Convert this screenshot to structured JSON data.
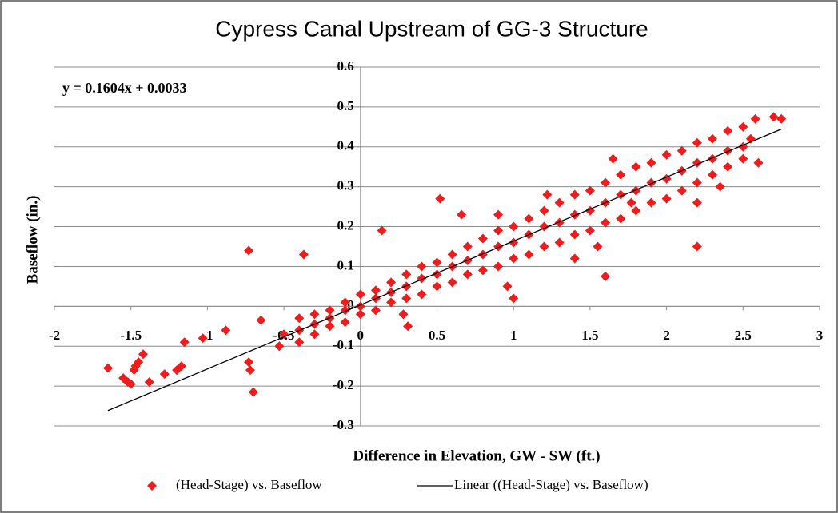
{
  "chart_data": {
    "type": "scatter",
    "title": "Cypress Canal Upstream of GG-3 Structure",
    "x_label": "Difference in Elevation, GW - SW (ft.)",
    "y_label": "Baseflow (in.)",
    "xlim": [
      -2,
      3
    ],
    "ylim": [
      -0.3,
      0.6
    ],
    "xticks": [
      -2,
      -1.5,
      -1,
      -0.5,
      0,
      0.5,
      1,
      1.5,
      2,
      2.5,
      3
    ],
    "yticks": [
      -0.3,
      -0.2,
      -0.1,
      0,
      0.1,
      0.2,
      0.3,
      0.4,
      0.5,
      0.6
    ],
    "grid": true,
    "legend": "bottom",
    "series": [
      {
        "name": "(Head-Stage) vs. Baseflow",
        "color": "#ee1c1c",
        "x": [
          -1.65,
          -1.55,
          -1.52,
          -1.5,
          -1.48,
          -1.47,
          -1.45,
          -1.42,
          -1.38,
          -1.28,
          -1.2,
          -1.17,
          -1.15,
          -1.03,
          -0.88,
          -0.73,
          -0.73,
          -0.72,
          -0.7,
          -0.65,
          -0.53,
          -0.5,
          -0.37,
          0.14,
          0.52,
          0.66,
          0.9,
          0.96,
          1.0,
          0.28,
          0.31,
          1.22,
          1.6,
          2.2,
          2.2,
          2.35,
          2.6,
          2.55,
          2.7,
          2.75,
          2.58,
          1.77,
          1.65,
          1.4,
          1.55,
          -0.4,
          -0.4,
          -0.4,
          -0.3,
          -0.3,
          -0.3,
          -0.2,
          -0.2,
          -0.2,
          -0.1,
          -0.1,
          -0.1,
          0,
          0,
          0,
          0.1,
          0.1,
          0.1,
          0.2,
          0.2,
          0.2,
          0.3,
          0.3,
          0.3,
          0.4,
          0.4,
          0.4,
          0.5,
          0.5,
          0.5,
          0.6,
          0.6,
          0.6,
          0.7,
          0.7,
          0.7,
          0.8,
          0.8,
          0.8,
          0.9,
          0.9,
          0.9,
          1.0,
          1.0,
          1.0,
          1.1,
          1.1,
          1.1,
          1.2,
          1.2,
          1.2,
          1.3,
          1.3,
          1.3,
          1.4,
          1.4,
          1.4,
          1.5,
          1.5,
          1.5,
          1.6,
          1.6,
          1.6,
          1.7,
          1.7,
          1.7,
          1.8,
          1.8,
          1.8,
          1.9,
          1.9,
          1.9,
          2.0,
          2.0,
          2.0,
          2.1,
          2.1,
          2.1,
          2.2,
          2.2,
          2.2,
          2.3,
          2.3,
          2.3,
          2.4,
          2.4,
          2.4,
          2.5,
          2.5,
          2.5
        ],
        "values": [
          -0.155,
          -0.18,
          -0.19,
          -0.195,
          -0.16,
          -0.15,
          -0.14,
          -0.12,
          -0.19,
          -0.17,
          -0.16,
          -0.15,
          -0.09,
          -0.08,
          -0.06,
          0.14,
          -0.14,
          -0.16,
          -0.215,
          -0.035,
          -0.1,
          -0.07,
          0.13,
          0.19,
          0.27,
          0.23,
          0.23,
          0.05,
          0.02,
          -0.02,
          -0.05,
          0.28,
          0.075,
          0.15,
          0.26,
          0.3,
          0.36,
          0.42,
          0.475,
          0.47,
          0.47,
          0.26,
          0.37,
          0.12,
          0.15,
          -0.09,
          -0.06,
          -0.03,
          -0.07,
          -0.045,
          -0.02,
          -0.05,
          -0.03,
          -0.01,
          -0.04,
          -0.01,
          0.01,
          -0.02,
          0.0,
          0.03,
          -0.01,
          0.02,
          0.04,
          0.01,
          0.035,
          0.06,
          0.02,
          0.05,
          0.08,
          0.03,
          0.07,
          0.1,
          0.05,
          0.08,
          0.11,
          0.06,
          0.1,
          0.13,
          0.08,
          0.115,
          0.15,
          0.09,
          0.13,
          0.17,
          0.1,
          0.15,
          0.19,
          0.12,
          0.16,
          0.2,
          0.13,
          0.18,
          0.22,
          0.15,
          0.2,
          0.24,
          0.16,
          0.21,
          0.26,
          0.18,
          0.23,
          0.28,
          0.19,
          0.24,
          0.29,
          0.21,
          0.26,
          0.31,
          0.22,
          0.28,
          0.33,
          0.24,
          0.29,
          0.35,
          0.26,
          0.31,
          0.36,
          0.27,
          0.32,
          0.38,
          0.29,
          0.34,
          0.39,
          0.31,
          0.36,
          0.41,
          0.33,
          0.37,
          0.42,
          0.35,
          0.39,
          0.44,
          0.37,
          0.4,
          0.45
        ]
      }
    ],
    "trendline": {
      "name": "Linear ((Head-Stage) vs. Baseflow)",
      "equation": "y = 0.1604x + 0.0033",
      "slope": 0.1604,
      "intercept": 0.0033,
      "x": [
        -1.65,
        2.75
      ],
      "color": "#000000"
    }
  }
}
